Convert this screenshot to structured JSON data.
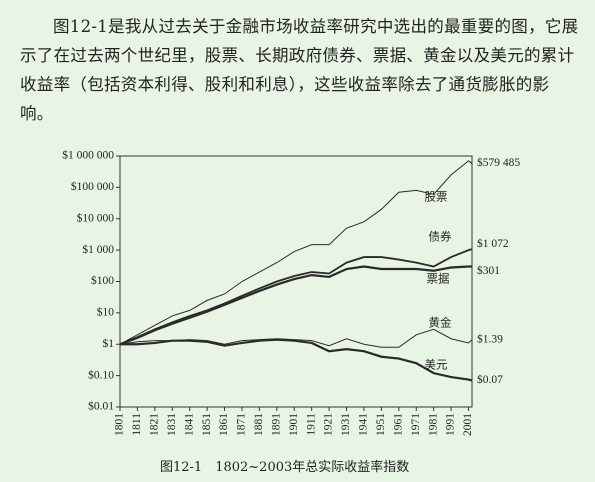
{
  "paragraph": "图12-1是我从过去关于金融市场收益率研究中选出的最重要的图，它展示了在过去两个世纪里，股票、长期政府债券、票据、黄金以及美元的累计收益率（包括资本利得、股利和利息），这些收益率除去了通货膨胀的影响。",
  "caption": "图12-1　1802~2003年总实际收益率指数",
  "chart_data": {
    "type": "line",
    "log_scale": true,
    "x": [
      1801,
      1811,
      1821,
      1831,
      1841,
      1851,
      1861,
      1871,
      1881,
      1891,
      1901,
      1911,
      1921,
      1931,
      1941,
      1951,
      1961,
      1971,
      1981,
      1991,
      2001,
      2003
    ],
    "xlim": [
      1801,
      2003
    ],
    "xticks": [
      1801,
      1811,
      1821,
      1831,
      1841,
      1851,
      1861,
      1871,
      1881,
      1891,
      1901,
      1911,
      1921,
      1931,
      1941,
      1951,
      1961,
      1971,
      1981,
      1991,
      2001
    ],
    "ylim": [
      0.01,
      1000000
    ],
    "yticks": [
      {
        "value": 0.01,
        "label": "$0.01"
      },
      {
        "value": 0.1,
        "label": "$0.10"
      },
      {
        "value": 1,
        "label": "$1"
      },
      {
        "value": 10,
        "label": "$10"
      },
      {
        "value": 100,
        "label": "$100"
      },
      {
        "value": 1000,
        "label": "$1 000"
      },
      {
        "value": 10000,
        "label": "$10 000"
      },
      {
        "value": 100000,
        "label": "$100 000"
      },
      {
        "value": 1000000,
        "label": "$1 000 000"
      }
    ],
    "series": [
      {
        "name": "股票",
        "color": "#2a2a2a",
        "values": [
          1,
          2,
          4,
          8,
          12,
          25,
          40,
          100,
          200,
          400,
          900,
          1500,
          1500,
          5000,
          8000,
          20000,
          70000,
          80000,
          60000,
          250000,
          700000,
          579485
        ],
        "value_labels": [
          null,
          null,
          null,
          null,
          null,
          null,
          null,
          null,
          null,
          null,
          null,
          null,
          null,
          null,
          null,
          null,
          null,
          null,
          null,
          null,
          null,
          "$579 485"
        ]
      },
      {
        "name": "债券",
        "color": "#2a2a2a",
        "values": [
          1,
          1.7,
          3,
          5,
          8,
          12,
          20,
          35,
          60,
          100,
          150,
          200,
          180,
          400,
          600,
          600,
          500,
          400,
          300,
          600,
          1000,
          1072
        ],
        "value_labels": [
          null,
          null,
          null,
          null,
          null,
          null,
          null,
          null,
          null,
          null,
          null,
          null,
          null,
          null,
          null,
          null,
          null,
          null,
          null,
          null,
          null,
          "$1 072"
        ]
      },
      {
        "name": "票据",
        "color": "#2a2a2a",
        "values": [
          1,
          1.6,
          2.8,
          4.5,
          7,
          11,
          18,
          30,
          50,
          80,
          120,
          160,
          140,
          250,
          300,
          250,
          250,
          250,
          220,
          280,
          300,
          301
        ],
        "value_labels": [
          null,
          null,
          null,
          null,
          null,
          null,
          null,
          null,
          null,
          null,
          null,
          null,
          null,
          null,
          null,
          null,
          null,
          null,
          null,
          null,
          null,
          "$301"
        ]
      },
      {
        "name": "黄金",
        "color": "#2a2a2a",
        "values": [
          1,
          1.2,
          1.3,
          1.3,
          1.4,
          1.3,
          1,
          1.3,
          1.4,
          1.5,
          1.4,
          1.3,
          0.9,
          1.5,
          1,
          0.8,
          0.8,
          2,
          3,
          1.5,
          1.1,
          1.39
        ],
        "value_labels": [
          null,
          null,
          null,
          null,
          null,
          null,
          null,
          null,
          null,
          null,
          null,
          null,
          null,
          null,
          null,
          null,
          null,
          null,
          null,
          null,
          null,
          "$1.39"
        ]
      },
      {
        "name": "美元",
        "color": "#2a2a2a",
        "values": [
          1,
          1,
          1.1,
          1.3,
          1.3,
          1.2,
          0.9,
          1.1,
          1.3,
          1.4,
          1.3,
          1.1,
          0.6,
          0.7,
          0.6,
          0.4,
          0.35,
          0.25,
          0.12,
          0.09,
          0.075,
          0.07
        ],
        "value_labels": [
          null,
          null,
          null,
          null,
          null,
          null,
          null,
          null,
          null,
          null,
          null,
          null,
          null,
          null,
          null,
          null,
          null,
          null,
          null,
          null,
          null,
          "$0.07"
        ]
      }
    ]
  }
}
